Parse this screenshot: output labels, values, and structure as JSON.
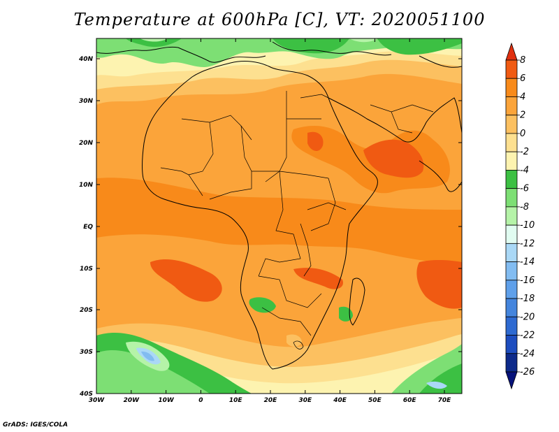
{
  "title": "Temperature at 600hPa [C], VT: 2020051100",
  "credit": "GrADS: IGES/COLA",
  "map": {
    "lat_labels": [
      "40N",
      "30N",
      "20N",
      "10N",
      "EQ",
      "10S",
      "20S",
      "30S",
      "40S"
    ],
    "lon_labels": [
      "30W",
      "20W",
      "10W",
      "0",
      "10E",
      "20E",
      "30E",
      "40E",
      "50E",
      "60E",
      "70E"
    ],
    "lat_range": [
      -40,
      45
    ],
    "lon_range": [
      -30,
      75
    ]
  },
  "colorbar": {
    "labels": [
      "8",
      "6",
      "4",
      "2",
      "0",
      "-2",
      "-4",
      "-6",
      "-8",
      "-10",
      "-12",
      "-14",
      "-16",
      "-18",
      "-20",
      "-22",
      "-24",
      "-26"
    ],
    "colors": [
      "#e03010",
      "#f05a12",
      "#f88a1a",
      "#fba43a",
      "#fcc060",
      "#fde090",
      "#fdf3b0",
      "#3cc043",
      "#7ddf74",
      "#b5f3a8",
      "#e1fcf1",
      "#aad8f6",
      "#82bcf1",
      "#5fa0ea",
      "#4485dd",
      "#2e6ad1",
      "#1d4dbf",
      "#0d2a8a",
      "#06127a"
    ]
  }
}
